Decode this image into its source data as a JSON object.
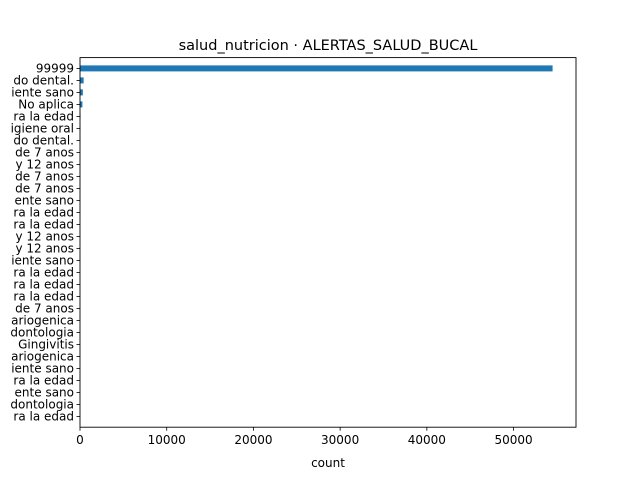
{
  "chart_data": {
    "type": "bar",
    "orientation": "horizontal",
    "title": "salud_nutricion · ALERTAS_SALUD_BUCAL",
    "xlabel": "count",
    "ylabel": "",
    "xlim": [
      0,
      57200
    ],
    "xticks": [
      0,
      10000,
      20000,
      30000,
      40000,
      50000
    ],
    "xtick_labels": [
      "0",
      "10000",
      "20000",
      "30000",
      "40000",
      "50000"
    ],
    "bar_color": "#1f77b4",
    "grid": false,
    "legend": "none",
    "categories": [
      "99999",
      "do dental.",
      "iente sano",
      "No aplica",
      "ra la edad",
      "igiene oral",
      "do dental.",
      "de 7 anos",
      "y 12 anos",
      "de 7 anos",
      "de 7 anos",
      "ente sano",
      "ra la edad",
      "ra la edad",
      "y 12 anos",
      "y 12 anos",
      "iente sano",
      "ra la edad",
      "ra la edad",
      "ra la edad",
      "de 7 anos",
      "ariogenica",
      "dontologia",
      "Gingivitis",
      "ariogenica",
      "iente sano",
      "ra la edad",
      "ente sano",
      "dontologia",
      "ra la edad"
    ],
    "values": [
      54500,
      420,
      330,
      280,
      60,
      40,
      30,
      25,
      20,
      18,
      16,
      14,
      12,
      11,
      10,
      9,
      8,
      7,
      6,
      5,
      5,
      4,
      4,
      3,
      3,
      2,
      2,
      2,
      1,
      1
    ]
  }
}
